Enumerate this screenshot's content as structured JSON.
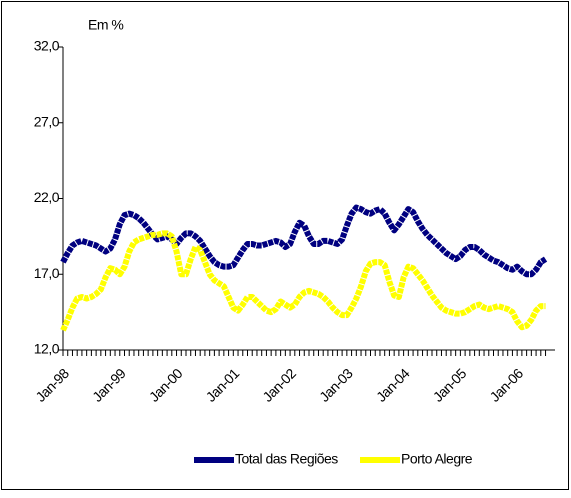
{
  "chart_data": {
    "type": "line",
    "y_unit_label": "Em %",
    "categories": [
      "Jan-98",
      null,
      null,
      null,
      null,
      null,
      null,
      null,
      null,
      null,
      null,
      null,
      "Jan-99",
      null,
      null,
      null,
      null,
      null,
      null,
      null,
      null,
      null,
      null,
      null,
      "Jan-00",
      null,
      null,
      null,
      null,
      null,
      null,
      null,
      null,
      null,
      null,
      null,
      "Jan-01",
      null,
      null,
      null,
      null,
      null,
      null,
      null,
      null,
      null,
      null,
      null,
      "Jan-02",
      null,
      null,
      null,
      null,
      null,
      null,
      null,
      null,
      null,
      null,
      null,
      "Jan-03",
      null,
      null,
      null,
      null,
      null,
      null,
      null,
      null,
      null,
      null,
      null,
      "Jan-04",
      null,
      null,
      null,
      null,
      null,
      null,
      null,
      null,
      null,
      null,
      null,
      "Jan-05",
      null,
      null,
      null,
      null,
      null,
      null,
      null,
      null,
      null,
      null,
      null,
      "Jan-06",
      null,
      null,
      null,
      null,
      null,
      null
    ],
    "series": [
      {
        "name": "Total das Regiões",
        "color": "#000080",
        "values": [
          17.8,
          18.4,
          18.9,
          19.1,
          19.2,
          19.1,
          19.0,
          18.9,
          18.7,
          18.5,
          18.7,
          19.3,
          20.3,
          20.9,
          21.0,
          20.9,
          20.7,
          20.4,
          20.0,
          19.6,
          19.3,
          19.4,
          19.5,
          19.3,
          19.0,
          19.4,
          19.7,
          19.7,
          19.5,
          19.2,
          18.7,
          18.2,
          17.8,
          17.6,
          17.5,
          17.5,
          17.6,
          18.1,
          18.6,
          19.0,
          19.0,
          18.9,
          18.9,
          19.0,
          19.1,
          19.2,
          19.1,
          18.8,
          19.0,
          19.8,
          20.4,
          20.2,
          19.5,
          19.0,
          19.0,
          19.2,
          19.2,
          19.1,
          19.0,
          19.3,
          20.2,
          21.0,
          21.4,
          21.3,
          21.1,
          21.0,
          21.2,
          21.3,
          21.0,
          20.4,
          19.9,
          20.3,
          20.8,
          21.3,
          21.1,
          20.5,
          20.0,
          19.6,
          19.3,
          19.0,
          18.7,
          18.4,
          18.2,
          18.0,
          18.2,
          18.6,
          18.8,
          18.8,
          18.6,
          18.3,
          18.1,
          17.9,
          17.8,
          17.6,
          17.4,
          17.3,
          17.5,
          17.2,
          17.0,
          17.0,
          17.3,
          17.8,
          18.0
        ]
      },
      {
        "name": "Porto Alegre",
        "color": "#ffff00",
        "values": [
          13.3,
          14.0,
          14.8,
          15.4,
          15.5,
          15.4,
          15.5,
          15.7,
          16.0,
          16.8,
          17.4,
          17.3,
          17.0,
          17.5,
          18.5,
          19.1,
          19.3,
          19.4,
          19.5,
          19.6,
          19.6,
          19.7,
          19.7,
          19.5,
          18.5,
          17.0,
          17.0,
          18.0,
          18.8,
          18.6,
          17.8,
          17.0,
          16.6,
          16.4,
          16.2,
          15.5,
          14.8,
          14.6,
          15.0,
          15.5,
          15.5,
          15.2,
          14.9,
          14.6,
          14.5,
          14.7,
          15.2,
          15.0,
          14.8,
          15.0,
          15.5,
          15.8,
          15.9,
          15.8,
          15.7,
          15.5,
          15.2,
          14.8,
          14.5,
          14.3,
          14.3,
          14.8,
          15.4,
          16.2,
          17.2,
          17.7,
          17.8,
          17.8,
          17.6,
          16.5,
          15.6,
          15.5,
          16.8,
          17.5,
          17.4,
          17.0,
          16.6,
          16.1,
          15.6,
          15.2,
          14.8,
          14.6,
          14.5,
          14.4,
          14.4,
          14.5,
          14.7,
          14.9,
          15.0,
          14.8,
          14.7,
          14.8,
          14.9,
          14.8,
          14.7,
          14.5,
          13.9,
          13.5,
          13.6,
          14.0,
          14.6,
          14.9,
          14.9
        ]
      }
    ],
    "ylim": [
      12,
      32
    ],
    "yticks": [
      {
        "value": 12,
        "label": "12,0"
      },
      {
        "value": 17,
        "label": "17,0"
      },
      {
        "value": 22,
        "label": "22,0"
      },
      {
        "value": 27,
        "label": "27,0"
      },
      {
        "value": 32,
        "label": "32,0"
      }
    ],
    "legend": "bottom"
  }
}
